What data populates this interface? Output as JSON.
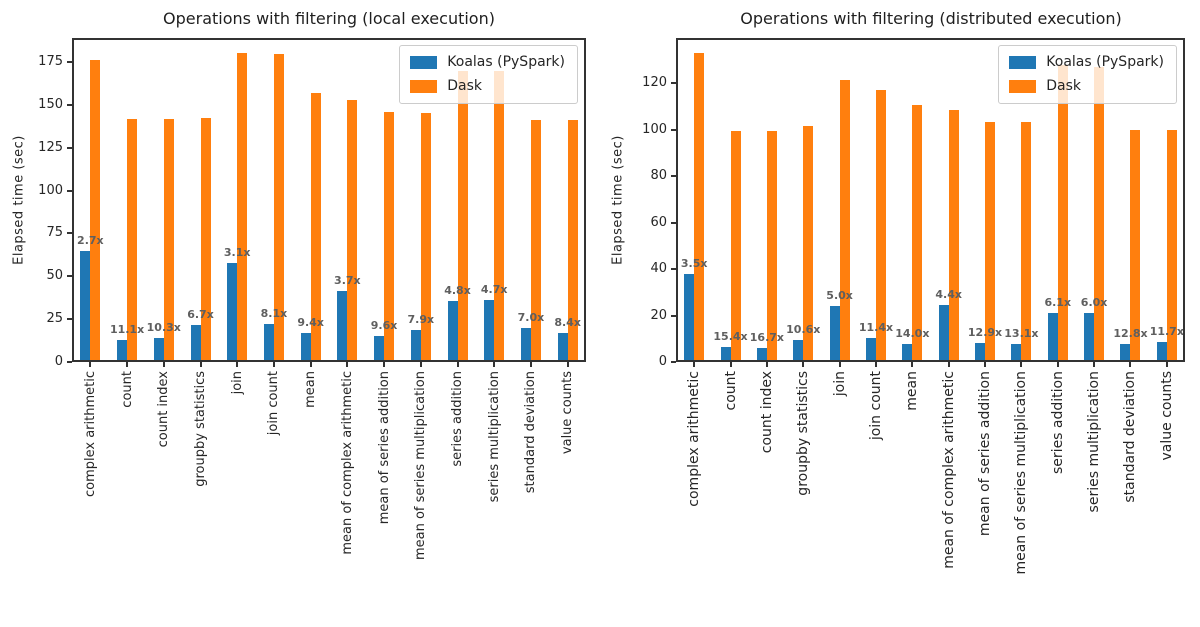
{
  "figure": {
    "background": "#ffffff"
  },
  "colors": {
    "koalas": "#1f77b4",
    "dask": "#ff7f0e",
    "annotation_text": "#5f5f5f",
    "axis_text": "#262626"
  },
  "chart_data": [
    {
      "type": "bar",
      "title": "Operations with filtering (local execution)",
      "xlabel": "",
      "ylabel": "Elapsed time (sec)",
      "ylim": [
        0,
        189
      ],
      "yticks": [
        0,
        25,
        50,
        75,
        100,
        125,
        150,
        175
      ],
      "grid": false,
      "legend_position": "upper right",
      "categories": [
        "complex arithmetic",
        "count",
        "count index",
        "groupby statistics",
        "join",
        "join count",
        "mean",
        "mean of complex arithmetic",
        "mean of series addition",
        "mean of series multiplication",
        "series addition",
        "series multiplication",
        "standard deviation",
        "value counts"
      ],
      "series": [
        {
          "name": "Koalas (PySpark)",
          "color": "#1f77b4",
          "values": [
            65,
            12.8,
            13.8,
            21.3,
            58,
            22.2,
            16.7,
            41.3,
            15.2,
            18.4,
            35.5,
            36.2,
            20.1,
            16.8
          ]
        },
        {
          "name": "Dask",
          "color": "#ff7f0e",
          "values": [
            176,
            142,
            142,
            142.5,
            180,
            179.5,
            157,
            153,
            146,
            145,
            170,
            170,
            141,
            141
          ]
        }
      ],
      "annotations": [
        "2.7x",
        "11.1x",
        "10.3x",
        "6.7x",
        "3.1x",
        "8.1x",
        "9.4x",
        "3.7x",
        "9.6x",
        "7.9x",
        "4.8x",
        "4.7x",
        "7.0x",
        "8.4x"
      ]
    },
    {
      "type": "bar",
      "title": "Operations with filtering (distributed execution)",
      "xlabel": "",
      "ylabel": "Elapsed time (sec)",
      "ylim": [
        0,
        139.5
      ],
      "yticks": [
        0,
        20,
        40,
        60,
        80,
        100,
        120
      ],
      "grid": false,
      "legend_position": "upper right",
      "categories": [
        "complex arithmetic",
        "count",
        "count index",
        "groupby statistics",
        "join",
        "join count",
        "mean",
        "mean of complex arithmetic",
        "mean of series addition",
        "mean of series multiplication",
        "series addition",
        "series multiplication",
        "standard deviation",
        "value counts"
      ],
      "series": [
        {
          "name": "Koalas (PySpark)",
          "color": "#1f77b4",
          "values": [
            38,
            6.5,
            6,
            9.6,
            24.3,
            10.3,
            7.9,
            24.7,
            8,
            7.9,
            21,
            21.2,
            7.8,
            8.6
          ]
        },
        {
          "name": "Dask",
          "color": "#ff7f0e",
          "values": [
            133,
            99.5,
            99.5,
            101.5,
            121.5,
            117,
            110.5,
            108.5,
            103.5,
            103.5,
            128,
            127,
            100,
            100
          ]
        }
      ],
      "annotations": [
        "3.5x",
        "15.4x",
        "16.7x",
        "10.6x",
        "5.0x",
        "11.4x",
        "14.0x",
        "4.4x",
        "12.9x",
        "13.1x",
        "6.1x",
        "6.0x",
        "12.8x",
        "11.7x"
      ]
    }
  ]
}
